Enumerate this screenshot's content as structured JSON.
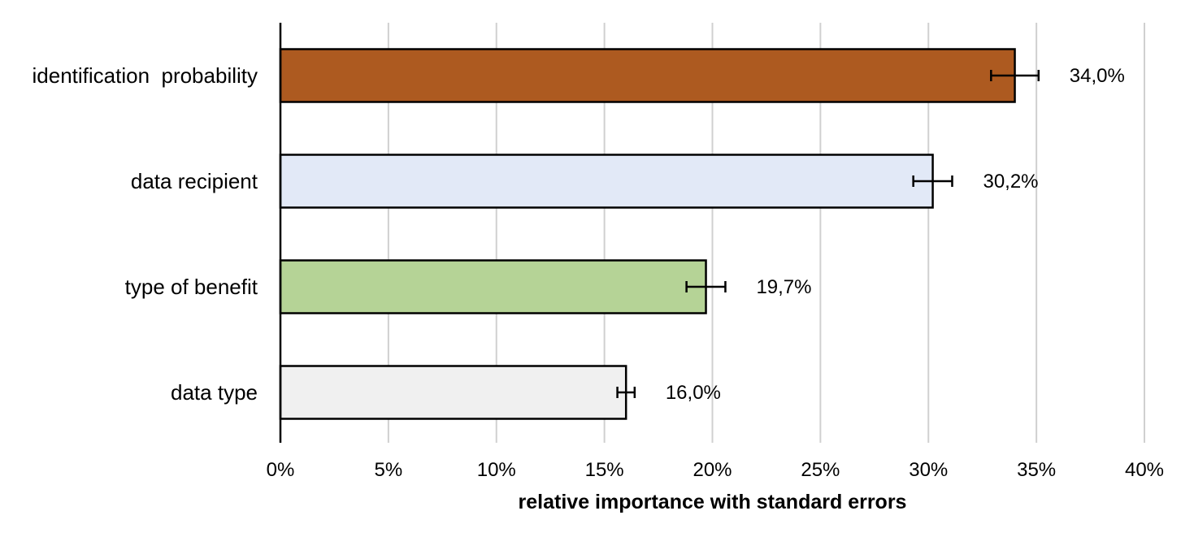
{
  "chart_data": {
    "type": "bar",
    "orientation": "horizontal",
    "title": "",
    "xlabel": "relative importance with standard errors",
    "ylabel": "",
    "xlim": [
      0,
      40
    ],
    "x_ticks": [
      0,
      5,
      10,
      15,
      20,
      25,
      30,
      35,
      40
    ],
    "x_tick_labels": [
      "0%",
      "5%",
      "10%",
      "15%",
      "20%",
      "25%",
      "30%",
      "35%",
      "40%"
    ],
    "grid": "vertical",
    "legend": "none",
    "categories": [
      "identification  probability",
      "data recipient",
      "type of benefit",
      "data type"
    ],
    "values": [
      34.0,
      30.2,
      19.7,
      16.0
    ],
    "errors": [
      1.1,
      0.9,
      0.9,
      0.4
    ],
    "value_labels": [
      "34,0%",
      "30,2%",
      "19,7%",
      "16,0%"
    ],
    "colors": [
      "#ad5a20",
      "#e2e9f7",
      "#b5d396",
      "#f0f0f0"
    ]
  }
}
